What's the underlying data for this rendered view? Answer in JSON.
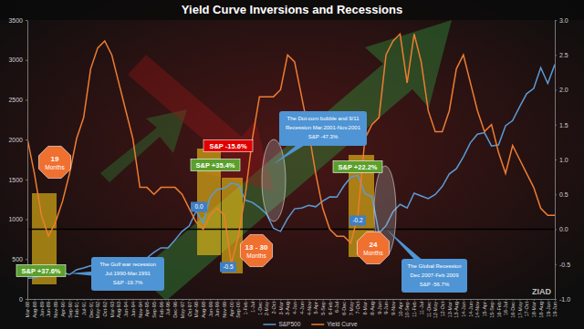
{
  "chart_data": {
    "type": "line",
    "title": "Yield Curve Inversions and Recessions",
    "categories": [
      "Mar-88",
      "Aug-88",
      "Jan-89",
      "Jun-89",
      "Nov-89",
      "Apr-90",
      "Sep-90",
      "Feb-91",
      "Jul-91",
      "Dec-91",
      "May-92",
      "Oct-92",
      "Mar-93",
      "Aug-93",
      "Jan-94",
      "Jun-94",
      "Nov-94",
      "Apr-95",
      "Sep-95",
      "Feb-96",
      "Jul-96",
      "Dec-96",
      "May-97",
      "Oct-97",
      "Mar-98",
      "Aug-98",
      "Jan-99",
      "Jun-99",
      "Nov-99",
      "Apr-00",
      "Sep-00",
      "1-Feb",
      "1-Jul",
      "1-Dec",
      "2-May",
      "2-Oct",
      "3-Mar",
      "3-Aug",
      "4-Jan",
      "4-Jun",
      "4-Nov",
      "5-Apr",
      "5-Sep",
      "6-Feb",
      "6-Jul",
      "6-Dec",
      "7-May",
      "7-Oct",
      "8-Mar",
      "8-Aug",
      "9-Jan",
      "9-Jun",
      "9-Nov",
      "10-Apr",
      "10-Sep",
      "11-Feb",
      "11-Jul",
      "11-Dec",
      "12-May",
      "12-Oct",
      "13-Mar",
      "13-Aug",
      "14-Jan",
      "14-Jun",
      "14-Nov",
      "15-Apr",
      "15-Sep",
      "16-Feb",
      "16-Jul",
      "16-Dec",
      "17-May",
      "17-Oct",
      "18-Mar",
      "18-Aug",
      "19-Jan",
      "19-Jun"
    ],
    "series": [
      {
        "name": "S&P500",
        "color": "#5b9bd5",
        "values": [
          259,
          262,
          297,
          318,
          346,
          331,
          306,
          367,
          388,
          417,
          415,
          419,
          452,
          464,
          481,
          444,
          454,
          515,
          584,
          641,
          640,
          741,
          848,
          915,
          1101,
          957,
          1280,
          1372,
          1389,
          1452,
          1436,
          1240,
          1211,
          1148,
          1067,
          886,
          848,
          1008,
          1131,
          1141,
          1174,
          1157,
          1229,
          1280,
          1277,
          1418,
          1530,
          1549,
          1323,
          1283,
          826,
          919,
          1096,
          1187,
          1141,
          1327,
          1292,
          1258,
          1310,
          1412,
          1569,
          1633,
          1783,
          1960,
          2068,
          2086,
          1920,
          1932,
          2174,
          2239,
          2412,
          2575,
          2641,
          2902,
          2704,
          2942
        ]
      },
      {
        "name": "Yield Curve",
        "color": "#ed7d31",
        "axis": "y2",
        "values": [
          1.3,
          0.8,
          0.2,
          -0.1,
          0.1,
          0.4,
          0.8,
          1.3,
          1.6,
          2.3,
          2.6,
          2.7,
          2.5,
          2.1,
          1.7,
          1.3,
          0.6,
          0.6,
          0.5,
          0.6,
          0.6,
          0.6,
          0.5,
          0.3,
          0.1,
          0,
          0.2,
          0.3,
          0.2,
          -0.5,
          -0.1,
          0.5,
          1.3,
          1.9,
          1.9,
          1.9,
          2.0,
          2.5,
          2.4,
          1.9,
          1.4,
          0.8,
          0.3,
          0,
          -0.1,
          -0.1,
          -0.2,
          0.2,
          1.3,
          1.5,
          1.6,
          2.5,
          2.7,
          2.8,
          2.1,
          2.8,
          2.4,
          1.7,
          1.4,
          1.4,
          1.7,
          2.3,
          2.5,
          2.1,
          1.7,
          1.4,
          1.5,
          1.1,
          0.8,
          1.2,
          1.0,
          0.8,
          0.6,
          0.3,
          0.2,
          0.2
        ]
      }
    ],
    "ylim": [
      0,
      3500
    ],
    "yticks": [
      0,
      500,
      1000,
      1500,
      2000,
      2500,
      3000,
      3500
    ],
    "y2lim": [
      -1,
      3
    ],
    "y2ticks": [
      {
        "value": -1,
        "label": "-1.0"
      },
      -0.5,
      {
        "value": 0,
        "label": "0.0"
      },
      0.5,
      {
        "value": 1,
        "label": "1.0"
      },
      1.5,
      {
        "value": 2,
        "label": "2.0"
      },
      2.5,
      {
        "value": 3,
        "label": "3.0"
      }
    ],
    "grid": false,
    "legend": "bottom",
    "annotations": [
      "S&P +37.6%",
      "S&P +35.4%",
      "S&P -15.6%",
      "S&P +22.2%",
      "The Gulf war recession",
      "Jul.1990-Mar.1991",
      "S&P -19.7%",
      "The Dot-com bubble and 9/11",
      "Recession Mar.2001-Nov.2001",
      "S&P -47.3%",
      "The Global Recession",
      "Dec 2007-Feb 2009",
      "S&P -56.7%",
      "19",
      "Months",
      "13 - 30",
      "Months",
      "24",
      "Months",
      "0.0",
      "-0.5",
      "-0.2",
      "ZIAD"
    ]
  }
}
